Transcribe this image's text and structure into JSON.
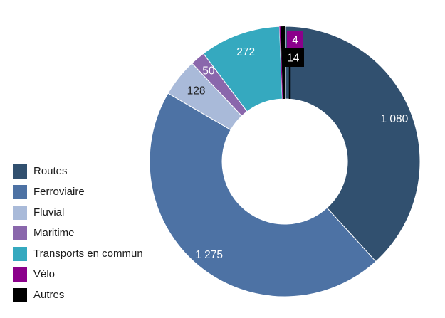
{
  "chart_data": {
    "type": "pie",
    "subtype": "donut",
    "title": "",
    "legend_position": "left",
    "direction": "clockwise",
    "start_angle_deg": 0,
    "total": 2823,
    "background_color": "#ffffff",
    "slices": [
      {
        "label": "Routes",
        "value": 1080,
        "display_value": "1 080",
        "color": "#31506F",
        "label_color": "#ffffff",
        "label_radius": 165
      },
      {
        "label": "Ferroviaire",
        "value": 1275,
        "display_value": "1 275",
        "color": "#4D72A4",
        "label_color": "#ffffff",
        "label_radius": 169
      },
      {
        "label": "Fluvial",
        "value": 128,
        "display_value": "128",
        "color": "#A9BAD9",
        "label_color": "#1a1a1a",
        "label_radius": 159
      },
      {
        "label": "Maritime",
        "value": 50,
        "display_value": "50",
        "color": "#8A67AC",
        "label_color": "#ffffff",
        "label_radius": 166
      },
      {
        "label": "Transports en commun",
        "value": 272,
        "display_value": "272",
        "color": "#35A9BF",
        "label_color": "#ffffff",
        "label_radius": 163
      },
      {
        "label": "Vélo",
        "value": 4,
        "display_value": "4",
        "color": "#8B008B",
        "label_color": "#ffffff",
        "callout": true
      },
      {
        "label": "Autres",
        "value": 14,
        "display_value": "14",
        "color": "#000000",
        "label_color": "#ffffff",
        "callout": true
      }
    ]
  }
}
